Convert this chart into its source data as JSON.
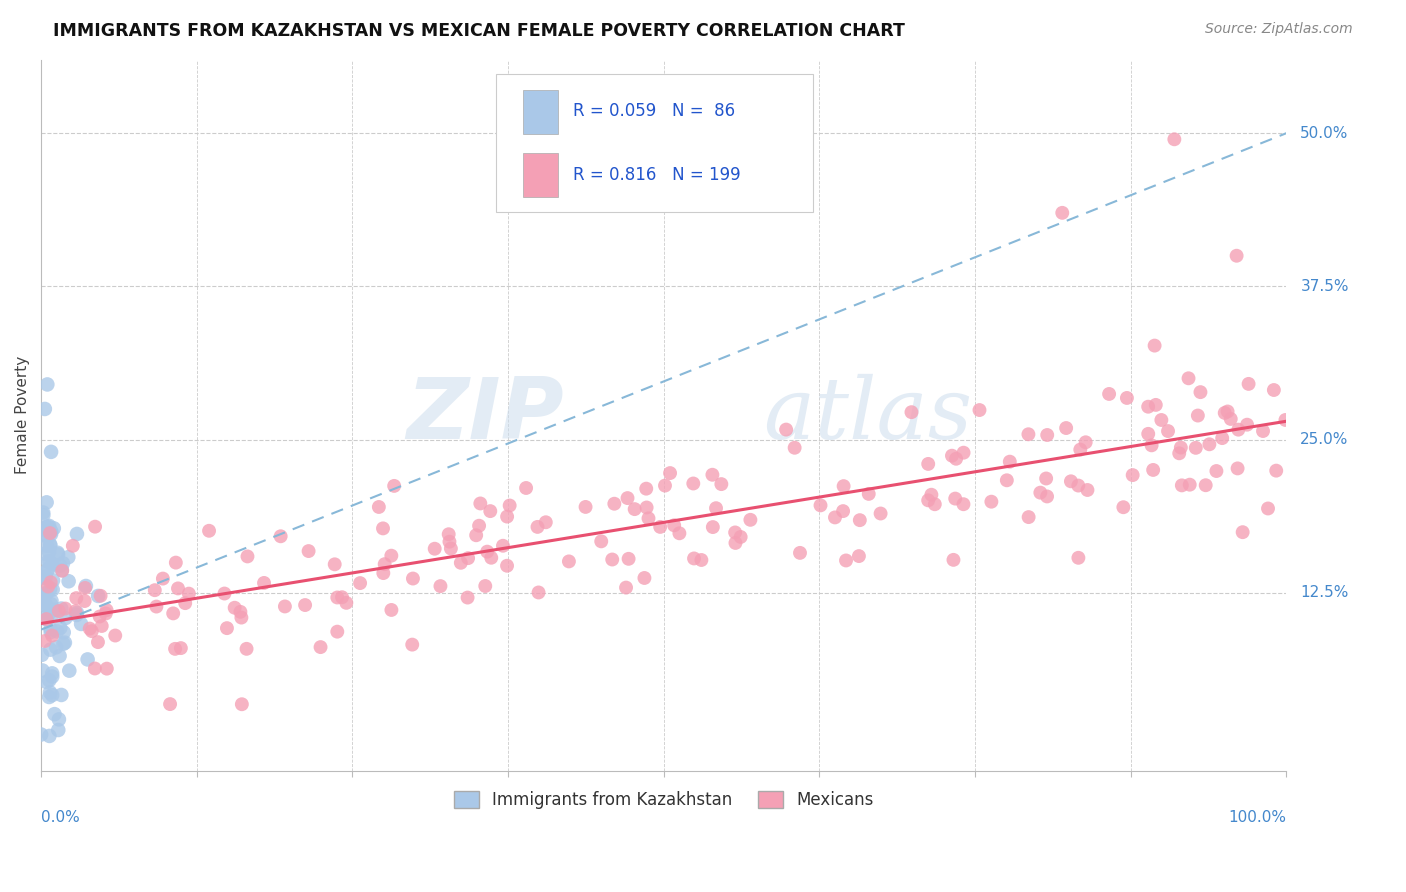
{
  "title": "IMMIGRANTS FROM KAZAKHSTAN VS MEXICAN FEMALE POVERTY CORRELATION CHART",
  "source": "Source: ZipAtlas.com",
  "ylabel": "Female Poverty",
  "legend_label1": "Immigrants from Kazakhstan",
  "legend_label2": "Mexicans",
  "R1": 0.059,
  "N1": 86,
  "R2": 0.816,
  "N2": 199,
  "ytick_labels": [
    "12.5%",
    "25.0%",
    "37.5%",
    "50.0%"
  ],
  "ytick_values": [
    0.125,
    0.25,
    0.375,
    0.5
  ],
  "xlim": [
    0.0,
    1.0
  ],
  "ylim": [
    -0.02,
    0.56
  ],
  "color_kaz": "#aac8e8",
  "color_mex": "#f4a0b5",
  "trendline_color_kaz": "#88b8d8",
  "trendline_color_mex": "#e85070",
  "watermark_zip": "ZIP",
  "watermark_atlas": "atlas",
  "background_color": "#ffffff",
  "grid_color": "#cccccc",
  "grid_style": "--"
}
